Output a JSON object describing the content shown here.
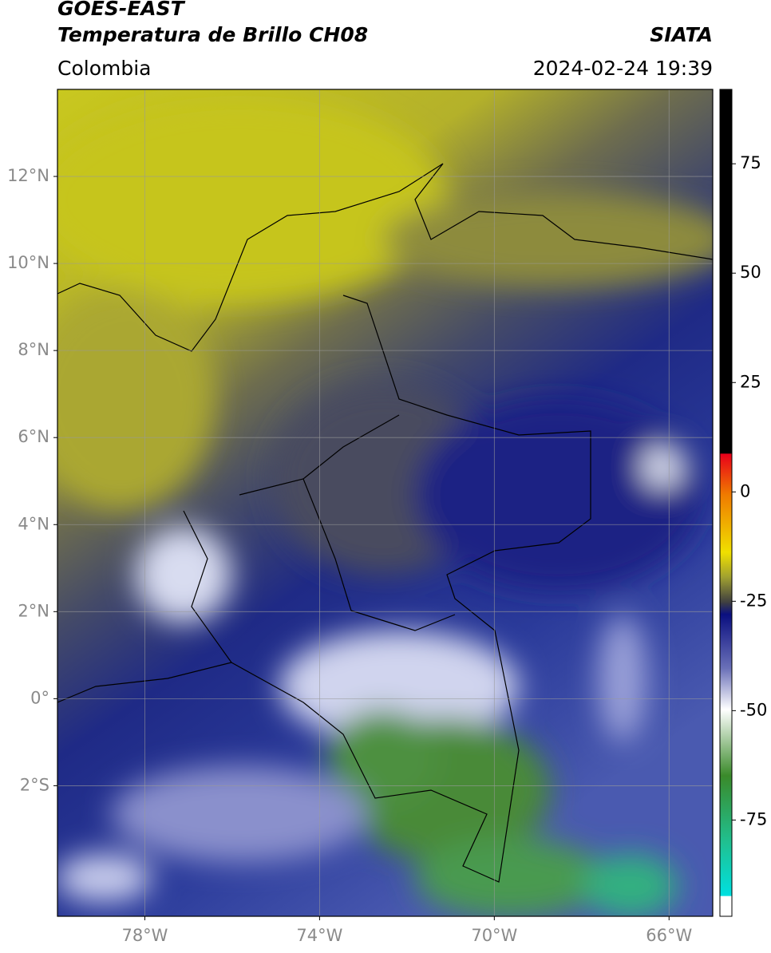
{
  "chart_data": {
    "type": "map",
    "title": "GOES-EAST",
    "subtitle": "Temperatura de Brillo CH08",
    "source": "SIATA",
    "region": "Colombia",
    "timestamp": "2024-02-24 19:39",
    "xlim": [
      -80,
      -65
    ],
    "ylim": [
      -5,
      14
    ],
    "xticks": [
      {
        "value": -78,
        "label": "78°W"
      },
      {
        "value": -74,
        "label": "74°W"
      },
      {
        "value": -70,
        "label": "70°W"
      },
      {
        "value": -66,
        "label": "66°W"
      }
    ],
    "yticks": [
      {
        "value": 12,
        "label": "12°N"
      },
      {
        "value": 10,
        "label": "10°N"
      },
      {
        "value": 8,
        "label": "8°N"
      },
      {
        "value": 6,
        "label": "6°N"
      },
      {
        "value": 4,
        "label": "4°N"
      },
      {
        "value": 2,
        "label": "2°N"
      },
      {
        "value": 0,
        "label": "0°"
      },
      {
        "value": -2,
        "label": "2°S"
      }
    ],
    "grid": true,
    "colorbar": {
      "lim": [
        -97,
        92
      ],
      "ticks": [
        75,
        50,
        25,
        0,
        -25,
        -50,
        -75
      ]
    }
  }
}
